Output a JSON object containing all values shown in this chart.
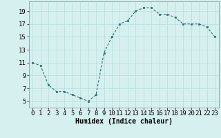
{
  "x": [
    0,
    1,
    2,
    3,
    4,
    5,
    6,
    7,
    8,
    9,
    10,
    11,
    12,
    13,
    14,
    15,
    16,
    17,
    18,
    19,
    20,
    21,
    22,
    23
  ],
  "y": [
    11,
    10.5,
    7.5,
    6.5,
    6.5,
    6,
    5.5,
    5,
    6,
    12.5,
    15,
    17,
    17.5,
    19,
    19.5,
    19.5,
    18.5,
    18.5,
    18,
    17,
    17,
    17,
    16.5,
    15
  ],
  "line_color": "#2d6e6e",
  "marker_color": "#2d6e6e",
  "bg_color": "#d6f0f0",
  "grid_color": "#b8dcdc",
  "xlabel": "Humidex (Indice chaleur)",
  "yticks": [
    5,
    7,
    9,
    11,
    13,
    15,
    17,
    19
  ],
  "xticks": [
    0,
    1,
    2,
    3,
    4,
    5,
    6,
    7,
    8,
    9,
    10,
    11,
    12,
    13,
    14,
    15,
    16,
    17,
    18,
    19,
    20,
    21,
    22,
    23
  ],
  "xlim": [
    -0.5,
    23.5
  ],
  "ylim": [
    4,
    20.5
  ],
  "xlabel_fontsize": 7,
  "tick_fontsize": 6.5
}
